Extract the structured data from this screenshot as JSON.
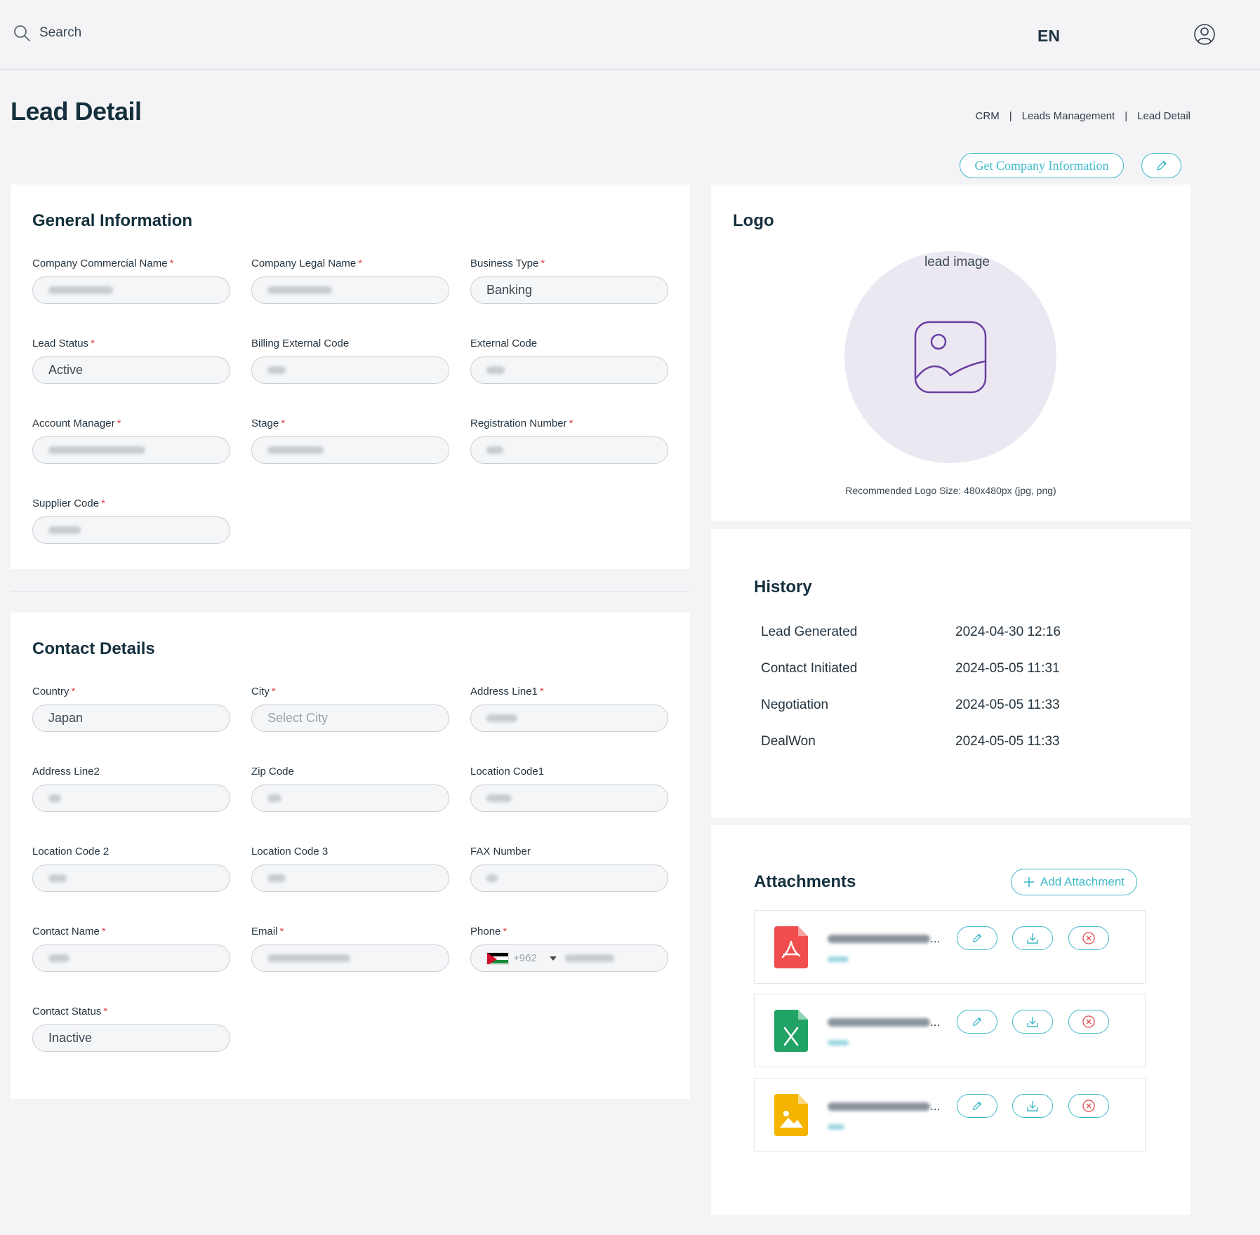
{
  "topbar": {
    "search_placeholder": "Search",
    "language": "EN",
    "icons": [
      "search-icon",
      "user-circle-icon"
    ]
  },
  "page": {
    "title": "Lead Detail",
    "breadcrumb": [
      "CRM",
      "Leads Management",
      "Lead Detail"
    ],
    "breadcrumb_separator": "|",
    "get_company_button": "Get Company Information"
  },
  "general": {
    "title": "General Information",
    "fields": [
      {
        "label": "Company Commercial Name",
        "required": true,
        "value": ""
      },
      {
        "label": "Company Legal Name",
        "required": true,
        "value": ""
      },
      {
        "label": "Business Type",
        "required": true,
        "value": "Banking"
      },
      {
        "label": "Lead Status",
        "required": true,
        "value": "Active"
      },
      {
        "label": "Billing External Code",
        "required": false,
        "value": ""
      },
      {
        "label": "External Code",
        "required": false,
        "value": ""
      },
      {
        "label": "Account Manager",
        "required": true,
        "value": ""
      },
      {
        "label": "Stage",
        "required": true,
        "value": ""
      },
      {
        "label": "Registration Number",
        "required": true,
        "value": ""
      },
      {
        "label": "Supplier Code",
        "required": true,
        "value": ""
      }
    ]
  },
  "contact": {
    "title": "Contact Details",
    "fields": [
      {
        "label": "Country",
        "required": true,
        "value": "Japan"
      },
      {
        "label": "City",
        "required": true,
        "value": "",
        "placeholder": "Select City"
      },
      {
        "label": "Address Line1",
        "required": true,
        "value": ""
      },
      {
        "label": "Address Line2",
        "required": false,
        "value": ""
      },
      {
        "label": "Zip Code",
        "required": false,
        "value": ""
      },
      {
        "label": "Location Code1",
        "required": false,
        "value": ""
      },
      {
        "label": "Location Code 2",
        "required": false,
        "value": ""
      },
      {
        "label": "Location Code 3",
        "required": false,
        "value": ""
      },
      {
        "label": "FAX Number",
        "required": false,
        "value": ""
      },
      {
        "label": "Contact Name",
        "required": true,
        "value": ""
      },
      {
        "label": "Email",
        "required": true,
        "value": ""
      },
      {
        "label": "Phone",
        "required": true,
        "value": "",
        "dial_code": "+962"
      },
      {
        "label": "Contact Status",
        "required": true,
        "value": "Inactive"
      }
    ]
  },
  "logo": {
    "title": "Logo",
    "alt_text": "lead image",
    "hint": "Recommended Logo Size: 480x480px (jpg, png)"
  },
  "history": {
    "title": "History",
    "rows": [
      {
        "event": "Lead Generated",
        "time": "2024-04-30 12:16"
      },
      {
        "event": "Contact Initiated",
        "time": "2024-05-05 11:31"
      },
      {
        "event": "Negotiation",
        "time": "2024-05-05 11:33"
      },
      {
        "event": "DealWon",
        "time": "2024-05-05 11:33"
      }
    ]
  },
  "attachments": {
    "title": "Attachments",
    "add_label": "Add Attachment",
    "items": [
      {
        "type": "pdf",
        "icon": "pdf-file-icon",
        "color": "#f04e4e"
      },
      {
        "type": "excel",
        "icon": "excel-file-icon",
        "color": "#21a366"
      },
      {
        "type": "image",
        "icon": "image-file-icon",
        "color": "#f5b400"
      }
    ]
  },
  "colors": {
    "accent": "#3fb8c9",
    "required": "#e0474c",
    "logo_icon": "#6b3fa0"
  }
}
